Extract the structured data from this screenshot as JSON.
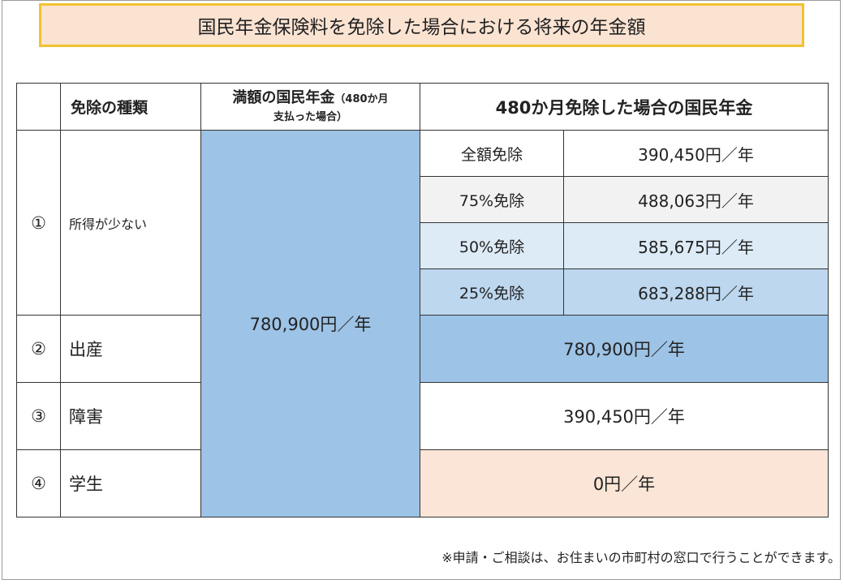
{
  "title": "国民年金保険料を免除した場合における将来の年金額",
  "table": {
    "header": {
      "type": "免除の種類",
      "full_main": "満額の国民年金",
      "full_note": "（480か月",
      "full_note2": "支払った場合）",
      "exempt": "480か月免除した場合の国民年金"
    },
    "full_amount": "780,900円／年",
    "rows": [
      {
        "num": "①",
        "type": "所得が少ない",
        "sub": [
          {
            "label": "全額免除",
            "value": "390,450円／年"
          },
          {
            "label": "75%免除",
            "value": "488,063円／年"
          },
          {
            "label": "50%免除",
            "value": "585,675円／年"
          },
          {
            "label": "25%免除",
            "value": "683,288円／年"
          }
        ]
      },
      {
        "num": "②",
        "type": "出産",
        "value": "780,900円／年"
      },
      {
        "num": "③",
        "type": "障害",
        "value": "390,450円／年"
      },
      {
        "num": "④",
        "type": "学生",
        "value": "0円／年"
      }
    ]
  },
  "note": "※申請・ご相談は、お住まいの市町村の窓口で行うことができます。",
  "colors": {
    "title_bg": "#fbe3d2",
    "title_border": "#f2c230",
    "full_blue": "#9dc3e6",
    "row_gray": "#f2f2f2",
    "row_light_blue": "#ddebf7",
    "row_mid_blue": "#bdd7ee",
    "student_peach": "#fbe5d6"
  }
}
